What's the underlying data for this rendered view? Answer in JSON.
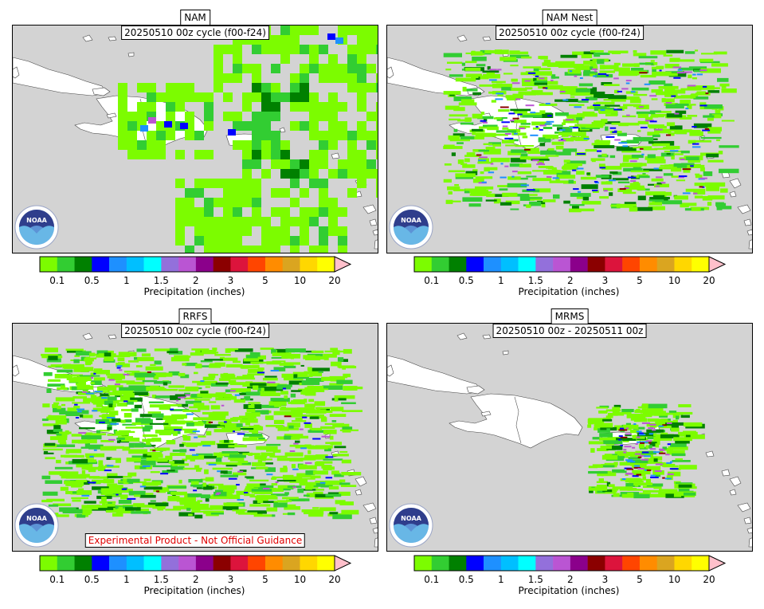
{
  "panels": [
    {
      "title": "NAM",
      "subtitle": "20250510 00z cycle (f00-f24)",
      "warning": ""
    },
    {
      "title": "NAM Nest",
      "subtitle": "20250510 00z cycle (f00-f24)",
      "warning": ""
    },
    {
      "title": "RRFS",
      "subtitle": "20250510 00z cycle (f00-f24)",
      "warning": "Experimental Product - Not Official Guidance"
    },
    {
      "title": "MRMS",
      "subtitle": "20250510 00z - 20250511 00z",
      "warning": ""
    }
  ],
  "colorbar": {
    "label": "Precipitation (inches)",
    "tick_labels": [
      "0.1",
      "0.5",
      "1",
      "1.5",
      "2",
      "3",
      "5",
      "10",
      "20"
    ],
    "colors": [
      "#7cfc00",
      "#32cd32",
      "#008000",
      "#0000ff",
      "#1e90ff",
      "#00bfff",
      "#00ffff",
      "#9370db",
      "#ba55d3",
      "#8b008b",
      "#8b0000",
      "#dc143c",
      "#ff4500",
      "#ff8c00",
      "#daa520",
      "#ffd700",
      "#ffff00"
    ],
    "extend_color": "#ffc0cb"
  },
  "logo": {
    "text": "NOAA"
  }
}
